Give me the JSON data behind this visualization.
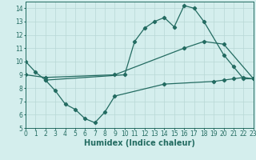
{
  "line1_x": [
    0,
    1,
    2,
    10,
    11,
    12,
    13,
    14,
    15,
    16,
    17,
    18,
    20,
    21,
    22,
    23
  ],
  "line1_y": [
    10.0,
    9.2,
    8.6,
    9.0,
    11.5,
    12.5,
    13.0,
    13.3,
    12.6,
    14.2,
    14.0,
    13.0,
    10.5,
    9.6,
    8.7,
    8.7
  ],
  "line2_x": [
    0,
    2,
    9,
    16,
    18,
    20,
    23
  ],
  "line2_y": [
    9.0,
    8.8,
    9.0,
    11.0,
    11.5,
    11.3,
    8.7
  ],
  "line3_x": [
    2,
    3,
    4,
    5,
    6,
    7,
    8,
    9,
    14,
    19,
    20,
    21,
    22,
    23
  ],
  "line3_y": [
    8.6,
    7.8,
    6.8,
    6.4,
    5.7,
    5.4,
    6.2,
    7.4,
    8.3,
    8.5,
    8.6,
    8.7,
    8.8,
    8.7
  ],
  "line_color": "#236b61",
  "bg_color": "#d4eeed",
  "grid_color": "#b8d8d6",
  "xlabel": "Humidex (Indice chaleur)",
  "xlim": [
    0,
    23
  ],
  "ylim": [
    5,
    14.5
  ],
  "yticks": [
    5,
    6,
    7,
    8,
    9,
    10,
    11,
    12,
    13,
    14
  ],
  "xticks": [
    0,
    1,
    2,
    3,
    4,
    5,
    6,
    7,
    8,
    9,
    10,
    11,
    12,
    13,
    14,
    15,
    16,
    17,
    18,
    19,
    20,
    21,
    22,
    23
  ],
  "tick_fontsize": 5.5,
  "xlabel_fontsize": 7,
  "marker": "D",
  "markersize": 2.2,
  "linewidth": 0.9
}
